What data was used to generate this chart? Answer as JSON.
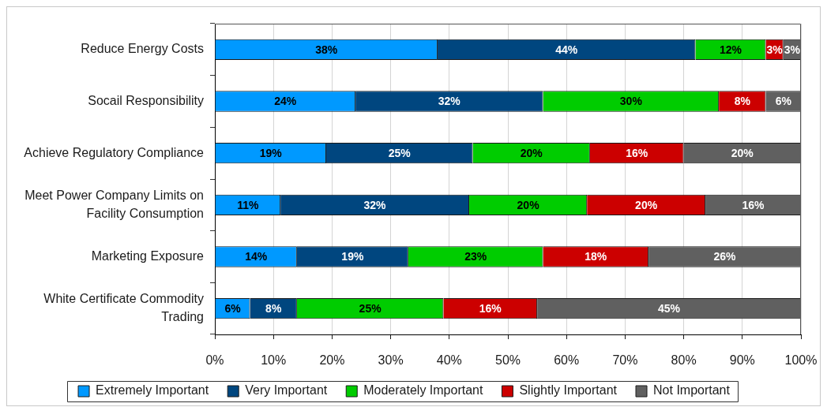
{
  "chart_data": {
    "type": "bar",
    "orientation": "horizontal",
    "stacked": true,
    "categories": [
      "Reduce Energy Costs",
      "Socail Responsibility",
      "Achieve Regulatory Compliance",
      "Meet Power Company Limits on Facility Consumption",
      "Marketing Exposure",
      "White Certificate Commodity Trading"
    ],
    "series": [
      {
        "name": "Extremely Important",
        "color": "#0099ff",
        "values": [
          38,
          24,
          19,
          11.2,
          14,
          6
        ],
        "value_labels": [
          "38%",
          "24%",
          "19%",
          "11%",
          "14%",
          "6%"
        ]
      },
      {
        "name": "Very Important",
        "color": "#00467f",
        "values": [
          44,
          32,
          25,
          32.2,
          19,
          8
        ],
        "value_labels": [
          "44%",
          "32%",
          "25%",
          "32%",
          "19%",
          "8%"
        ]
      },
      {
        "name": "Moderately Important",
        "color": "#00cc00",
        "values": [
          12,
          30,
          20,
          20.1,
          23,
          25
        ],
        "value_labels": [
          "12%",
          "30%",
          "20%",
          "20%",
          "23%",
          "25%"
        ]
      },
      {
        "name": "Slightly Important",
        "color": "#cc0000",
        "values": [
          3,
          8,
          16,
          20.2,
          18,
          16
        ],
        "value_labels": [
          "3%",
          "8%",
          "16%",
          "20%",
          "18%",
          "16%"
        ]
      },
      {
        "name": "Not Important",
        "color": "#606060",
        "values": [
          3,
          6,
          20,
          16.3,
          26,
          45
        ],
        "value_labels": [
          "3%",
          "6%",
          "20%",
          "16%",
          "26%",
          "45%"
        ]
      }
    ],
    "xlim": [
      0,
      100
    ],
    "xticks": [
      {
        "value": 0,
        "label": "0%"
      },
      {
        "value": 10,
        "label": "10%"
      },
      {
        "value": 20,
        "label": "20%"
      },
      {
        "value": 30,
        "label": "30%"
      },
      {
        "value": 40,
        "label": "40%"
      },
      {
        "value": 50,
        "label": "50%"
      },
      {
        "value": 60,
        "label": "60%"
      },
      {
        "value": 70,
        "label": "70%"
      },
      {
        "value": 80,
        "label": "80%"
      },
      {
        "value": 90,
        "label": "90%"
      },
      {
        "value": 100,
        "label": "100%"
      }
    ],
    "grid": "x",
    "legend": "bottom"
  }
}
